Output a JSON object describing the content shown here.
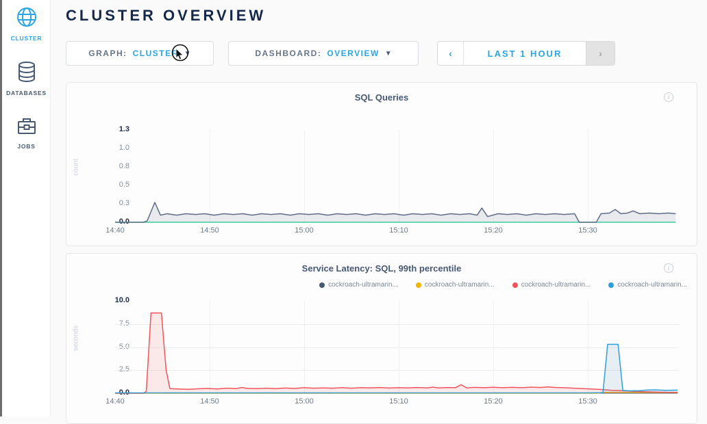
{
  "accent_colors": {
    "blue": "#29a5e1",
    "navy": "#152849",
    "slate": "#475872",
    "green": "#36d399"
  },
  "sidebar": {
    "items": [
      {
        "label": "CLUSTER",
        "icon": "globe-icon",
        "active": true
      },
      {
        "label": "DATABASES",
        "icon": "database-icon",
        "active": false
      },
      {
        "label": "JOBS",
        "icon": "briefcase-icon",
        "active": false
      }
    ]
  },
  "header": {
    "title": "CLUSTER OVERVIEW"
  },
  "controls": {
    "graph": {
      "label": "GRAPH:",
      "value": "CLUSTER"
    },
    "dashboard": {
      "label": "DASHBOARD:",
      "value": "OVERVIEW"
    },
    "timerange": {
      "prev": "‹",
      "label": "LAST 1 HOUR",
      "next": "›"
    }
  },
  "info_glyph": "i",
  "chart_data": [
    {
      "type": "area",
      "title": "SQL Queries",
      "ylabel": "count",
      "xlabel": "",
      "ylim": [
        0,
        1.3
      ],
      "grid": "vertical-only",
      "yticks": [
        {
          "label": "0.0",
          "value": 0
        },
        {
          "label": "0.3",
          "value": 0.26
        },
        {
          "label": "0.5",
          "value": 0.52
        },
        {
          "label": "0.8",
          "value": 0.78
        },
        {
          "label": "1.0",
          "value": 1.04
        },
        {
          "label": "1.3",
          "value": 1.3
        }
      ],
      "hgrid_values": [],
      "x_ticks": [
        "14:40",
        "14:50",
        "15:00",
        "15:10",
        "15:20",
        "15:30"
      ],
      "x_tick_minutes": [
        0,
        10,
        20,
        30,
        40,
        50
      ],
      "series": [
        {
          "name": "zero-baseline",
          "color": "#36d399",
          "fill": null,
          "points": [
            [
              0,
              0
            ],
            [
              59.3,
              0
            ]
          ]
        },
        {
          "name": "sql-queries",
          "color": "#5f6c87",
          "fill": "rgba(95,108,135,0.13)",
          "points": [
            [
              0,
              0
            ],
            [
              1,
              0
            ],
            [
              2,
              0
            ],
            [
              3,
              0
            ],
            [
              3.4,
              0.02
            ],
            [
              4.2,
              0.28
            ],
            [
              4.8,
              0.1
            ],
            [
              5.5,
              0.12
            ],
            [
              6.5,
              0.1
            ],
            [
              7.5,
              0.12
            ],
            [
              8.5,
              0.11
            ],
            [
              9.5,
              0.12
            ],
            [
              10.5,
              0.1
            ],
            [
              11.5,
              0.12
            ],
            [
              12.5,
              0.11
            ],
            [
              13.5,
              0.12
            ],
            [
              14.5,
              0.1
            ],
            [
              15.5,
              0.12
            ],
            [
              16.5,
              0.11
            ],
            [
              17.5,
              0.12
            ],
            [
              18.5,
              0.1
            ],
            [
              19.5,
              0.12
            ],
            [
              20.5,
              0.11
            ],
            [
              21.5,
              0.12
            ],
            [
              22.5,
              0.1
            ],
            [
              23.5,
              0.12
            ],
            [
              24.5,
              0.11
            ],
            [
              25.5,
              0.12
            ],
            [
              26.5,
              0.1
            ],
            [
              27.5,
              0.12
            ],
            [
              28.5,
              0.11
            ],
            [
              29.5,
              0.12
            ],
            [
              30.5,
              0.1
            ],
            [
              31.5,
              0.12
            ],
            [
              32.5,
              0.11
            ],
            [
              33.5,
              0.12
            ],
            [
              34.5,
              0.1
            ],
            [
              35.5,
              0.12
            ],
            [
              36.5,
              0.11
            ],
            [
              37.5,
              0.12
            ],
            [
              38.3,
              0.1
            ],
            [
              38.8,
              0.2
            ],
            [
              39.4,
              0.08
            ],
            [
              40.5,
              0.12
            ],
            [
              41.5,
              0.11
            ],
            [
              42.5,
              0.12
            ],
            [
              43.5,
              0.1
            ],
            [
              44.5,
              0.12
            ],
            [
              45.5,
              0.11
            ],
            [
              46.5,
              0.12
            ],
            [
              47.5,
              0.11
            ],
            [
              48.6,
              0.12
            ],
            [
              49.1,
              0
            ],
            [
              50.9,
              0
            ],
            [
              51.4,
              0.12
            ],
            [
              52.3,
              0.13
            ],
            [
              52.9,
              0.18
            ],
            [
              53.5,
              0.12
            ],
            [
              54.2,
              0.13
            ],
            [
              54.8,
              0.16
            ],
            [
              55.5,
              0.12
            ],
            [
              56.5,
              0.13
            ],
            [
              57.5,
              0.12
            ],
            [
              58.5,
              0.13
            ],
            [
              59.3,
              0.12
            ]
          ]
        }
      ]
    },
    {
      "type": "area",
      "title": "Service Latency: SQL, 99th percentile",
      "ylabel": "seconds",
      "xlabel": "",
      "ylim": [
        0,
        10
      ],
      "grid": "both",
      "yticks": [
        {
          "label": "0.0",
          "value": 0
        },
        {
          "label": "2.5",
          "value": 2.5
        },
        {
          "label": "5.0",
          "value": 5
        },
        {
          "label": "7.5",
          "value": 7.5
        },
        {
          "label": "10.0",
          "value": 10
        }
      ],
      "hgrid_values": [
        2.5,
        5,
        7.5
      ],
      "x_ticks": [
        "14:40",
        "14:50",
        "15:00",
        "15:10",
        "15:20",
        "15:30"
      ],
      "x_tick_minutes": [
        0,
        10,
        20,
        30,
        40,
        50
      ],
      "legend": [
        {
          "label": "cockroach-ultramarin...",
          "color": "#475872"
        },
        {
          "label": "cockroach-ultramarin...",
          "color": "#f0b400"
        },
        {
          "label": "cockroach-ultramarin...",
          "color": "#f2545b"
        },
        {
          "label": "cockroach-ultramarin...",
          "color": "#2d9fdb"
        }
      ],
      "series": [
        {
          "name": "node-1-latency",
          "color": "#475872",
          "fill": null,
          "points": [
            [
              0,
              0.02
            ],
            [
              59.5,
              0.02
            ]
          ]
        },
        {
          "name": "node-2-latency",
          "color": "#f0b400",
          "fill": null,
          "points": [
            [
              0,
              0
            ],
            [
              51,
              0
            ],
            [
              51.6,
              0.09
            ],
            [
              55,
              0.08
            ],
            [
              59.5,
              0.07
            ]
          ]
        },
        {
          "name": "node-3-latency",
          "color": "#f2545b",
          "fill": "rgba(242,84,91,0.12)",
          "points": [
            [
              0,
              0
            ],
            [
              1,
              0
            ],
            [
              2,
              0
            ],
            [
              3,
              0
            ],
            [
              3.3,
              0.2
            ],
            [
              3.8,
              8.7
            ],
            [
              4.9,
              8.7
            ],
            [
              5.4,
              2.5
            ],
            [
              5.8,
              0.5
            ],
            [
              6.8,
              0.45
            ],
            [
              7.8,
              0.42
            ],
            [
              8.8,
              0.48
            ],
            [
              9.8,
              0.52
            ],
            [
              10.8,
              0.46
            ],
            [
              11.8,
              0.55
            ],
            [
              12.8,
              0.5
            ],
            [
              13.4,
              0.62
            ],
            [
              14,
              0.52
            ],
            [
              15,
              0.5
            ],
            [
              16,
              0.55
            ],
            [
              17,
              0.5
            ],
            [
              18,
              0.56
            ],
            [
              19,
              0.52
            ],
            [
              20,
              0.6
            ],
            [
              21,
              0.55
            ],
            [
              22,
              0.58
            ],
            [
              23,
              0.55
            ],
            [
              24,
              0.6
            ],
            [
              25,
              0.55
            ],
            [
              26,
              0.6
            ],
            [
              27,
              0.58
            ],
            [
              28,
              0.62
            ],
            [
              29,
              0.56
            ],
            [
              30,
              0.6
            ],
            [
              31,
              0.58
            ],
            [
              32,
              0.62
            ],
            [
              33,
              0.58
            ],
            [
              33.6,
              0.66
            ],
            [
              34.2,
              0.58
            ],
            [
              35,
              0.62
            ],
            [
              36,
              0.6
            ],
            [
              36.6,
              0.92
            ],
            [
              37.2,
              0.58
            ],
            [
              38,
              0.64
            ],
            [
              39,
              0.6
            ],
            [
              40,
              0.65
            ],
            [
              41,
              0.6
            ],
            [
              42,
              0.64
            ],
            [
              43,
              0.6
            ],
            [
              44,
              0.66
            ],
            [
              45,
              0.62
            ],
            [
              45.8,
              0.68
            ],
            [
              46.6,
              0.62
            ],
            [
              47.5,
              0.6
            ],
            [
              48.5,
              0.55
            ],
            [
              49.5,
              0.5
            ],
            [
              50.5,
              0.45
            ],
            [
              51.5,
              0.4
            ],
            [
              52.5,
              0.32
            ],
            [
              53.5,
              0.28
            ],
            [
              54.5,
              0.22
            ],
            [
              55.5,
              0.18
            ],
            [
              56.5,
              0.15
            ],
            [
              57.5,
              0.12
            ],
            [
              58.5,
              0.1
            ],
            [
              59.5,
              0.1
            ]
          ]
        },
        {
          "name": "node-4-latency",
          "color": "#2d9fdb",
          "fill": "rgba(70,130,180,0.12)",
          "points": [
            [
              0,
              0.04
            ],
            [
              10,
              0.04
            ],
            [
              20,
              0.04
            ],
            [
              30,
              0.04
            ],
            [
              40,
              0.04
            ],
            [
              50,
              0.04
            ],
            [
              51.6,
              0.05
            ],
            [
              52.1,
              5.3
            ],
            [
              53.2,
              5.3
            ],
            [
              53.7,
              0.3
            ],
            [
              54.5,
              0.26
            ],
            [
              55.5,
              0.28
            ],
            [
              56.2,
              0.34
            ],
            [
              57.2,
              0.36
            ],
            [
              58.2,
              0.32
            ],
            [
              59.5,
              0.33
            ]
          ]
        }
      ]
    }
  ]
}
